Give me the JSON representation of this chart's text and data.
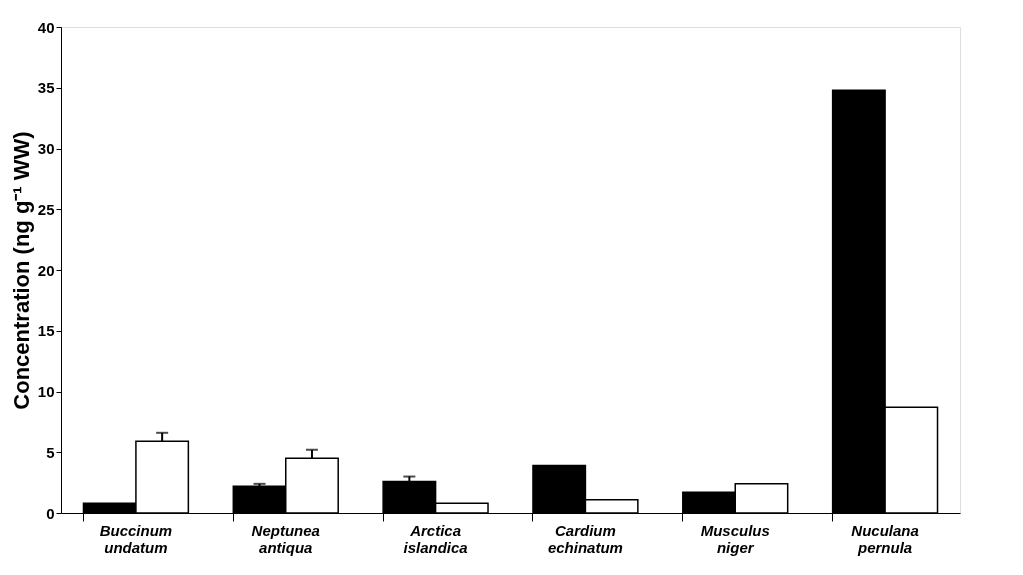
{
  "chart_data": {
    "type": "bar",
    "ylabel": "Concentration (ng g⁻¹ WW)",
    "categories": [
      "Buccinum undatum",
      "Neptunea antiqua",
      "Arctica islandica",
      "Cardium echinatum",
      "Musculus niger",
      "Nuculana pernula"
    ],
    "series": [
      {
        "color": "#000000",
        "values": [
          0.8,
          2.2,
          2.6,
          3.9,
          1.7,
          34.8
        ],
        "errors": [
          null,
          [
            2.2,
            2.4
          ],
          [
            2.6,
            3.0
          ],
          null,
          null,
          null
        ]
      },
      {
        "color": "#ffffff",
        "values": [
          5.9,
          4.5,
          0.8,
          1.1,
          2.4,
          8.7
        ],
        "errors": [
          [
            5.9,
            6.6
          ],
          [
            4.5,
            5.2
          ],
          null,
          null,
          null,
          null
        ]
      }
    ],
    "ylim": [
      0,
      40
    ],
    "yticks": [
      0,
      5,
      10,
      15,
      20,
      25,
      30,
      35,
      40
    ],
    "grid": false,
    "legend": false
  }
}
